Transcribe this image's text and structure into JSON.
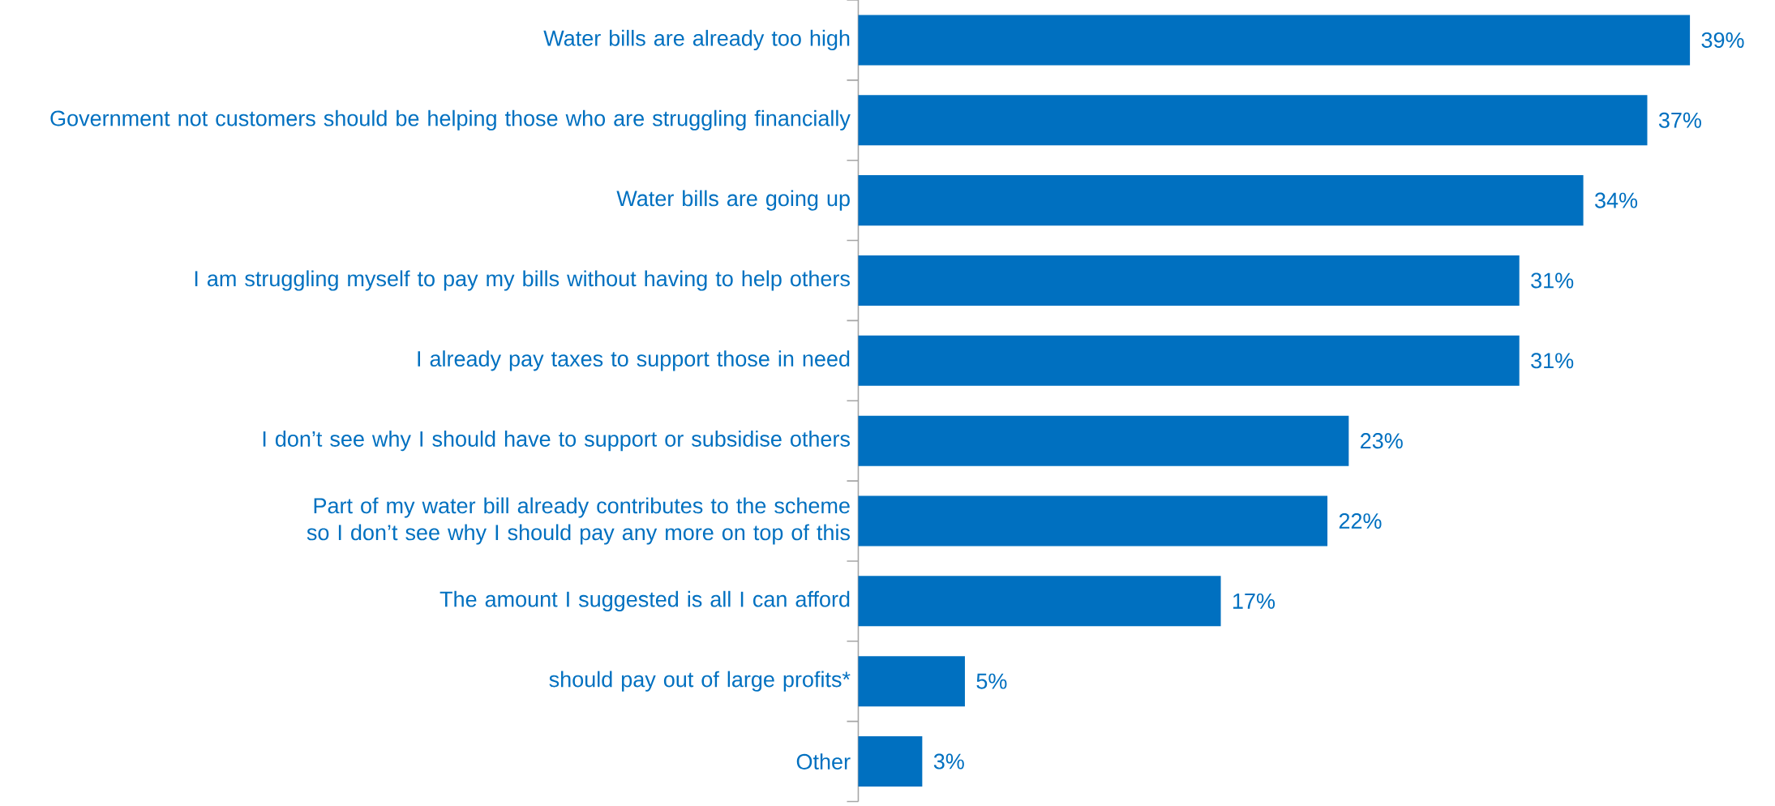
{
  "chart_data": {
    "type": "bar",
    "orientation": "horizontal",
    "color": "#0070c0",
    "categories": [
      "Water bills are already too high",
      "Government not customers should be helping those who are struggling financially",
      "Water bills are going up",
      "I am struggling myself to pay my bills without having to help others",
      "I already pay taxes to support those in need",
      "I don’t see why I should have to support or subsidise others",
      "Part of my water bill already contributes to the scheme so I don’t see why I should pay any more on top of this",
      "The amount I suggested is all I can afford",
      "should pay out of large profits*",
      "Other"
    ],
    "values": [
      39,
      37,
      34,
      31,
      31,
      23,
      22,
      17,
      5,
      3
    ],
    "value_labels": [
      "39%",
      "37%",
      "34%",
      "31%",
      "31%",
      "23%",
      "22%",
      "17%",
      "5%",
      "3%"
    ]
  }
}
